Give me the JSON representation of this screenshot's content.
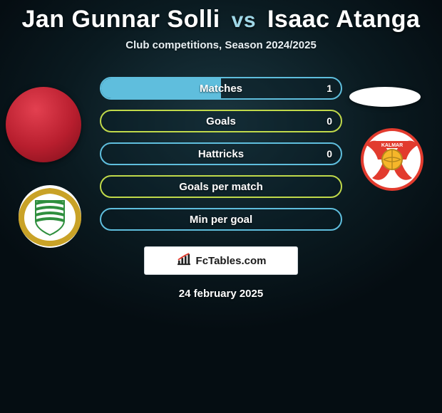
{
  "title": {
    "player1": "Jan Gunnar Solli",
    "vs": "vs",
    "player2": "Isaac Atanga"
  },
  "subtitle": "Club competitions, Season 2024/2025",
  "stats": [
    {
      "label": "Matches",
      "value": "1",
      "color": "#5fbedd",
      "fill_pct": 50
    },
    {
      "label": "Goals",
      "value": "0",
      "color": "#c0d94a",
      "fill_pct": 0
    },
    {
      "label": "Hattricks",
      "value": "0",
      "color": "#5fbedd",
      "fill_pct": 0
    },
    {
      "label": "Goals per match",
      "value": "",
      "color": "#c0d94a",
      "fill_pct": 0
    },
    {
      "label": "Min per goal",
      "value": "",
      "color": "#5fbedd",
      "fill_pct": 0
    }
  ],
  "brand": "FcTables.com",
  "date": "24 february 2025",
  "crest_left": {
    "wreath_color": "#c9a227",
    "stripe_green": "#2f8f3e",
    "bg": "#ffffff"
  },
  "crest_right": {
    "wing_color": "#e23b2e",
    "ball_color": "#f6b62a",
    "bg": "#ffffff",
    "text": "KALMAR"
  }
}
